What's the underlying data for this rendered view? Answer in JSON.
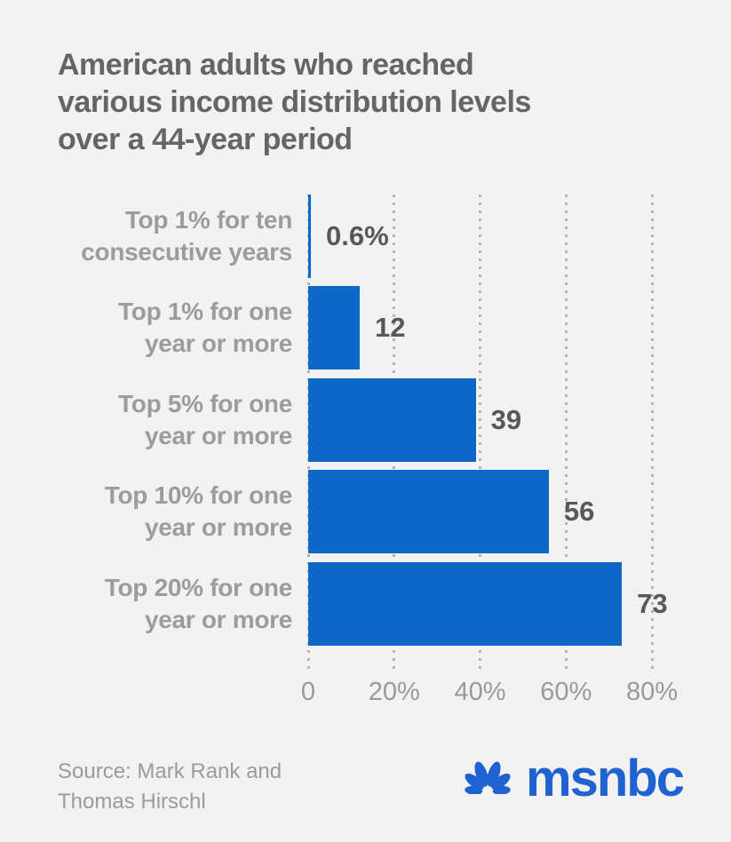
{
  "title": "American adults who reached\nvarious income distribution levels\nover a 44-year period",
  "chart_data": {
    "type": "bar",
    "orientation": "horizontal",
    "title": "American adults who reached various income distribution levels over a 44-year period",
    "categories": [
      "Top 1% for ten\nconsecutive years",
      "Top 1% for one\nyear or more",
      "Top 5% for one\nyear or more",
      "Top 10% for one\nyear or more",
      "Top 20% for one\nyear or more"
    ],
    "values": [
      0.6,
      12,
      39,
      56,
      73
    ],
    "value_labels": [
      "0.6%",
      "12",
      "39",
      "56",
      "73"
    ],
    "xlim": [
      0,
      80
    ],
    "xticks": [
      {
        "value": 0,
        "label": "0"
      },
      {
        "value": 20,
        "label": "20%"
      },
      {
        "value": 40,
        "label": "40%"
      },
      {
        "value": 60,
        "label": "60%"
      },
      {
        "value": 80,
        "label": "80%"
      }
    ],
    "grid": "dotted-vertical",
    "legend": "none",
    "bar_color": "#0b68c6"
  },
  "source": "Source: Mark Rank and\nThomas Hirschl",
  "logo": {
    "wordmark": "msnbc",
    "icon": "nbc-peacock",
    "color": "#1f63d0"
  },
  "colors": {
    "background": "#f2f2f2",
    "bar": "#0b68c6",
    "title_text": "#656565",
    "category_label": "#9c9c9c",
    "value_label": "#57585a",
    "axis_label": "#9a9a9a",
    "grid_dots": "#b3b3b3",
    "source_text": "#9b9b9b",
    "logo_blue": "#1f63d0"
  }
}
